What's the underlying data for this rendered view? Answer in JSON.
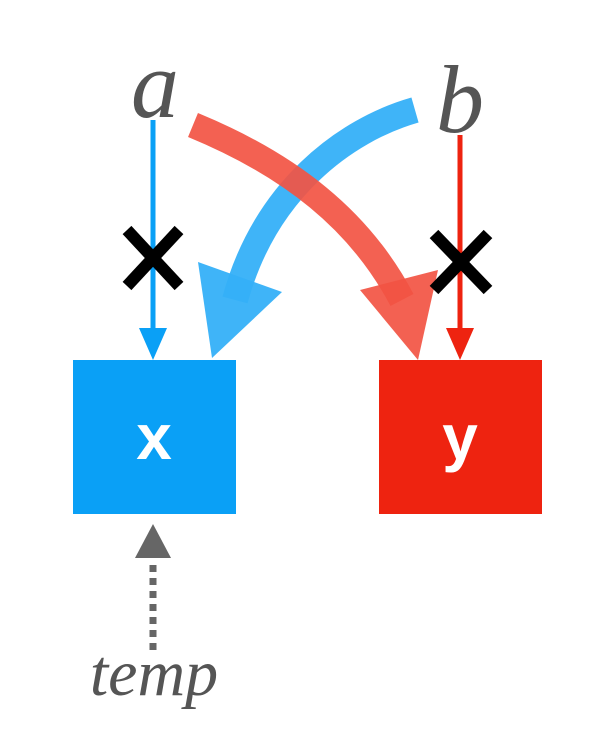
{
  "variables": {
    "a": "a",
    "b": "b",
    "temp": "temp"
  },
  "boxes": {
    "x": "x",
    "y": "y"
  },
  "colors": {
    "blue": "#0aa0f6",
    "blue_light": "#35b0f8",
    "red": "#ee2310",
    "red_light": "#f25443",
    "text_gray": "#555555",
    "cross": "#000000",
    "dotted_arrow": "#666666"
  }
}
